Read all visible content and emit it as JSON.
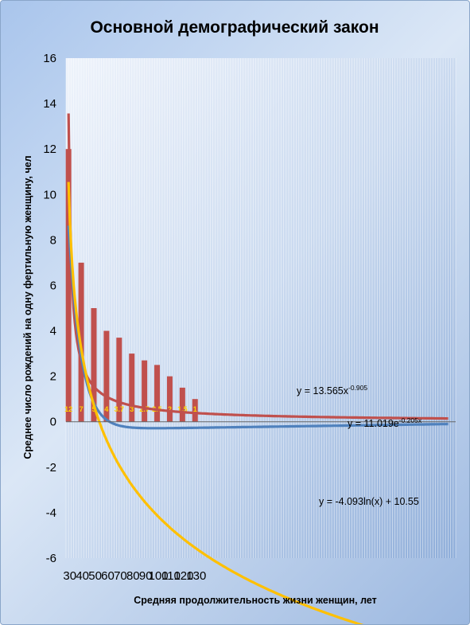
{
  "chart_data": {
    "type": "bar",
    "title": "Основной демографический закон",
    "xlabel": "Средняя продолжительность жизни женщин, лет",
    "ylabel": "Среднее число рождений на одну фертильную женщину, чел",
    "x_tick_labels": [
      "30",
      "40",
      "50",
      "60",
      "70",
      "80",
      "90",
      "100",
      "110",
      "120",
      "130"
    ],
    "y_tick_labels": [
      "16",
      "14",
      "12",
      "10",
      "8",
      "6",
      "4",
      "2",
      "0",
      "-2",
      "-4",
      "-6"
    ],
    "ylim": [
      -6,
      16
    ],
    "xlim": [
      29,
      183
    ],
    "y_tick_step": 2,
    "grid": "vertical",
    "bars": {
      "x": [
        30,
        35,
        40,
        45,
        50,
        55,
        60,
        65,
        70,
        75,
        80
      ],
      "values": [
        12,
        7,
        5,
        4,
        3.7,
        3,
        2.7,
        2.5,
        2,
        1.5,
        1
      ],
      "labels": [
        "12",
        "7",
        "5",
        "4",
        "3.7",
        "3",
        "2.7",
        "2.5",
        "2",
        "1.5",
        "1"
      ],
      "color": "#c0504d"
    },
    "series": [
      {
        "equation": "y = 13.565x",
        "exponent": "-0.905",
        "model": "power",
        "a": 13.565,
        "b": -0.905,
        "color": "#c0504d"
      },
      {
        "equation": "y = 11.019e",
        "exponent": "-0.205x",
        "model": "exponential",
        "a": 11.019,
        "b": -0.205,
        "color": "#4f81bd"
      },
      {
        "equation": "y = -4.093ln(x) + 10.55",
        "exponent": "",
        "model": "log",
        "a": -4.093,
        "b": 10.55,
        "color": "#ffc000"
      }
    ]
  }
}
